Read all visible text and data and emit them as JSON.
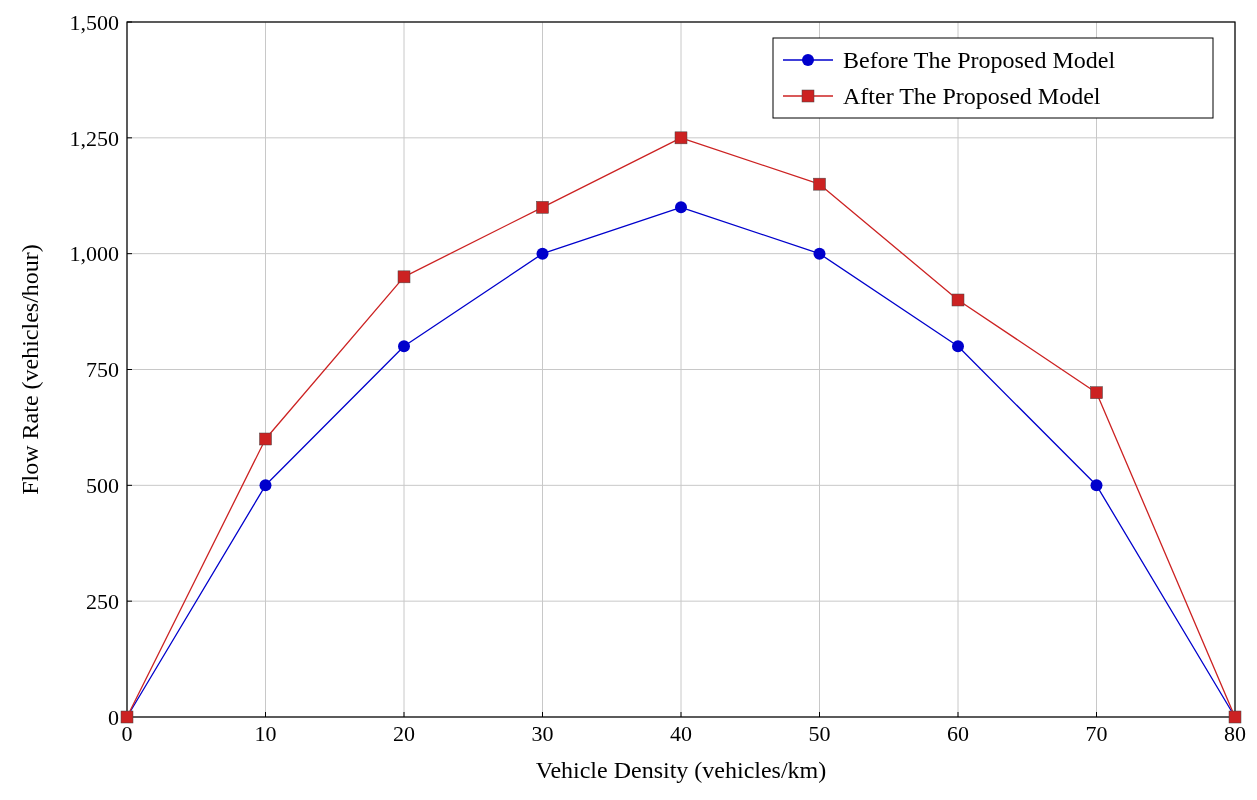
{
  "chart_data": {
    "type": "line",
    "xlabel": "Vehicle Density (vehicles/km)",
    "ylabel": "Flow Rate (vehicles/hour)",
    "x": [
      0,
      10,
      20,
      30,
      40,
      50,
      60,
      70,
      80
    ],
    "xlim": [
      0,
      80
    ],
    "xticks": [
      0,
      10,
      20,
      30,
      40,
      50,
      60,
      70,
      80
    ],
    "ylim": [
      0,
      1500
    ],
    "yticks": [
      0,
      {
        "value": 250,
        "label": "250"
      },
      {
        "value": 500,
        "label": "500"
      },
      {
        "value": 750,
        "label": "750"
      },
      {
        "value": 1000,
        "label": "1,000"
      },
      {
        "value": 1250,
        "label": "1,250"
      },
      {
        "value": 1500,
        "label": "1,500"
      }
    ],
    "grid": true,
    "legend": "top right",
    "series": [
      {
        "name": "Before The Proposed Model",
        "color": "#0000cc",
        "marker": "circle",
        "values": [
          0,
          500,
          800,
          1000,
          1100,
          1000,
          800,
          500,
          0
        ]
      },
      {
        "name": "After The Proposed Model",
        "color": "#cc2222",
        "marker": "square",
        "values": [
          0,
          600,
          950,
          1100,
          1250,
          1150,
          900,
          700,
          0
        ]
      }
    ]
  }
}
